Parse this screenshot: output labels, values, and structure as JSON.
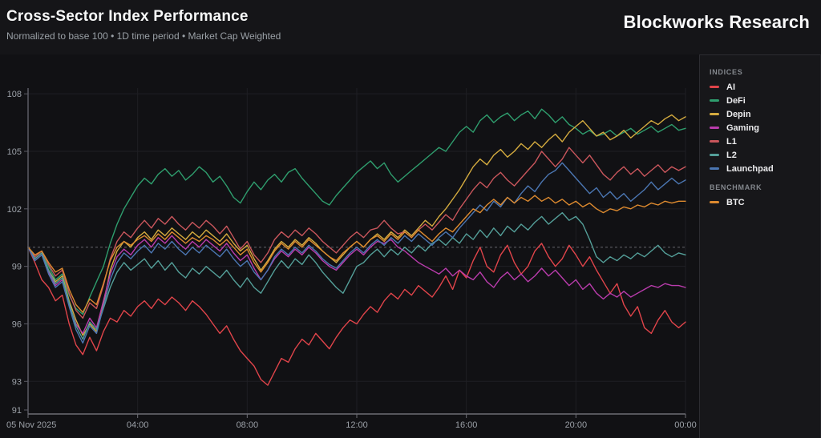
{
  "header": {
    "title": "Cross-Sector Index Performance",
    "subtitle": "Normalized to base 100 • 1D time period • Market Cap Weighted",
    "brand": "Blockworks Research"
  },
  "legend": {
    "sections": [
      {
        "label": "INDICES",
        "items": [
          "AI",
          "DeFi",
          "Depin",
          "Gaming",
          "L1",
          "L2",
          "Launchpad"
        ]
      },
      {
        "label": "BENCHMARK",
        "items": [
          "BTC"
        ]
      }
    ]
  },
  "chart_data": {
    "type": "line",
    "title": "Cross-Sector Index Performance",
    "xlabel": "",
    "ylabel": "",
    "x_axis": {
      "date_label": "05 Nov 2025",
      "tick_labels": [
        "04:00",
        "08:00",
        "12:00",
        "16:00",
        "20:00",
        "00:00"
      ],
      "tick_hours": [
        4,
        8,
        12,
        16,
        20,
        24
      ],
      "hours_span": 24
    },
    "y_axis": {
      "tick_values": [
        108,
        105,
        102,
        99,
        96,
        93,
        91
      ],
      "range": [
        91.3,
        108.3
      ]
    },
    "baseline": 100,
    "grid": true,
    "legend_position": "right-panel",
    "sample_interval_hours": 0.25,
    "series": [
      {
        "name": "AI",
        "color": "#e0444a",
        "values": [
          100.0,
          99.2,
          98.3,
          97.9,
          97.2,
          97.5,
          96.0,
          94.9,
          94.4,
          95.3,
          94.6,
          95.6,
          96.3,
          96.1,
          96.7,
          96.4,
          96.9,
          97.2,
          96.8,
          97.3,
          97.0,
          97.4,
          97.1,
          96.7,
          97.2,
          96.9,
          96.5,
          96.0,
          95.5,
          95.9,
          95.2,
          94.6,
          94.2,
          93.8,
          93.1,
          92.8,
          93.5,
          94.2,
          94.0,
          94.7,
          95.2,
          94.9,
          95.5,
          95.1,
          94.7,
          95.3,
          95.8,
          96.2,
          96.0,
          96.5,
          96.9,
          96.6,
          97.2,
          97.6,
          97.3,
          97.8,
          97.5,
          98.0,
          97.7,
          97.4,
          97.9,
          98.5,
          97.8,
          98.8,
          98.4,
          99.3,
          100.0,
          99.0,
          98.7,
          99.6,
          100.1,
          99.2,
          98.6,
          99.0,
          99.8,
          100.2,
          99.5,
          99.0,
          99.4,
          100.1,
          99.6,
          99.0,
          99.5,
          98.8,
          98.2,
          97.6,
          98.1,
          97.0,
          96.4,
          96.9,
          95.8,
          95.5,
          96.2,
          96.7,
          96.1,
          95.8,
          96.1
        ]
      },
      {
        "name": "DeFi",
        "color": "#2f9e6e",
        "values": [
          100.0,
          99.5,
          99.8,
          99.0,
          98.3,
          98.6,
          97.5,
          96.8,
          96.5,
          97.4,
          98.2,
          99.0,
          100.2,
          101.2,
          102.0,
          102.6,
          103.2,
          103.6,
          103.3,
          103.8,
          104.1,
          103.7,
          104.0,
          103.5,
          103.8,
          104.2,
          103.9,
          103.4,
          103.7,
          103.2,
          102.6,
          102.3,
          102.9,
          103.4,
          103.0,
          103.5,
          103.8,
          103.4,
          103.9,
          104.1,
          103.6,
          103.2,
          102.8,
          102.4,
          102.2,
          102.7,
          103.1,
          103.5,
          103.9,
          104.2,
          104.5,
          104.1,
          104.4,
          103.8,
          103.4,
          103.7,
          104.0,
          104.3,
          104.6,
          104.9,
          105.2,
          105.0,
          105.5,
          106.0,
          106.3,
          106.0,
          106.6,
          106.9,
          106.5,
          106.8,
          107.0,
          106.6,
          106.9,
          107.1,
          106.7,
          107.2,
          106.9,
          106.5,
          106.8,
          106.4,
          106.2,
          105.9,
          106.1,
          105.8,
          105.9,
          106.1,
          105.8,
          106.0,
          106.2,
          105.9,
          106.1,
          106.3,
          106.0,
          106.2,
          106.4,
          106.1,
          106.2
        ]
      },
      {
        "name": "Depin",
        "color": "#d4ab3f",
        "values": [
          100.0,
          99.4,
          99.7,
          98.8,
          98.2,
          98.5,
          97.2,
          96.2,
          95.4,
          96.0,
          95.6,
          97.0,
          98.8,
          99.8,
          100.3,
          100.0,
          100.5,
          100.8,
          100.4,
          100.9,
          100.6,
          101.0,
          100.7,
          100.4,
          100.8,
          100.5,
          100.9,
          100.6,
          100.3,
          100.7,
          100.2,
          99.8,
          100.1,
          99.4,
          98.8,
          99.3,
          99.9,
          100.3,
          100.0,
          100.4,
          100.1,
          100.5,
          100.2,
          99.8,
          99.5,
          99.2,
          99.6,
          100.0,
          100.3,
          100.0,
          100.4,
          100.7,
          100.4,
          100.8,
          100.5,
          100.9,
          100.6,
          101.0,
          101.4,
          101.1,
          101.6,
          102.0,
          102.5,
          103.0,
          103.6,
          104.2,
          104.6,
          104.3,
          104.8,
          105.1,
          104.7,
          105.0,
          105.4,
          105.1,
          105.5,
          105.2,
          105.6,
          105.9,
          105.5,
          106.0,
          106.3,
          106.6,
          106.2,
          105.8,
          106.0,
          105.6,
          105.8,
          106.1,
          105.7,
          106.0,
          106.3,
          106.6,
          106.4,
          106.7,
          106.9,
          106.6,
          106.8
        ]
      },
      {
        "name": "Gaming",
        "color": "#b93cac",
        "values": [
          100.0,
          99.3,
          99.6,
          98.7,
          98.0,
          98.3,
          97.0,
          96.0,
          95.5,
          96.3,
          95.8,
          97.2,
          98.6,
          99.5,
          99.9,
          99.6,
          100.1,
          100.4,
          100.0,
          100.5,
          100.2,
          100.6,
          100.2,
          99.9,
          100.3,
          100.0,
          100.4,
          100.1,
          99.8,
          100.2,
          99.7,
          99.3,
          99.6,
          98.9,
          98.3,
          98.8,
          99.4,
          99.8,
          99.5,
          99.9,
          99.6,
          100.0,
          99.7,
          99.3,
          99.0,
          98.8,
          99.2,
          99.6,
          99.9,
          99.6,
          100.0,
          100.3,
          100.2,
          100.4,
          100.0,
          99.8,
          99.5,
          99.2,
          99.0,
          98.8,
          98.6,
          98.9,
          98.5,
          98.8,
          98.5,
          98.3,
          98.7,
          98.2,
          97.9,
          98.4,
          98.7,
          98.3,
          98.6,
          98.2,
          98.5,
          98.9,
          98.5,
          98.8,
          98.4,
          98.0,
          98.3,
          97.8,
          98.1,
          97.6,
          97.3,
          97.6,
          97.4,
          97.7,
          97.4,
          97.6,
          97.8,
          98.0,
          97.9,
          98.1,
          98.0,
          98.0,
          97.9
        ]
      },
      {
        "name": "L1",
        "color": "#c9565c",
        "values": [
          100.0,
          99.5,
          99.8,
          99.1,
          98.5,
          98.8,
          97.6,
          96.7,
          96.3,
          97.1,
          96.8,
          98.0,
          99.4,
          100.3,
          100.8,
          100.5,
          101.0,
          101.4,
          101.0,
          101.5,
          101.2,
          101.6,
          101.2,
          100.9,
          101.3,
          101.0,
          101.4,
          101.1,
          100.7,
          101.1,
          100.5,
          99.9,
          100.3,
          99.6,
          99.2,
          99.7,
          100.4,
          100.8,
          100.5,
          100.9,
          100.6,
          101.0,
          100.7,
          100.3,
          100.0,
          99.7,
          100.1,
          100.5,
          100.8,
          100.5,
          100.9,
          101.0,
          101.4,
          101.0,
          100.7,
          100.8,
          100.5,
          100.9,
          101.2,
          100.9,
          101.3,
          101.7,
          101.4,
          102.0,
          102.5,
          103.0,
          103.4,
          103.1,
          103.6,
          103.9,
          103.5,
          103.2,
          103.6,
          104.0,
          104.4,
          105.0,
          104.6,
          104.2,
          104.6,
          105.2,
          104.8,
          104.4,
          104.8,
          104.3,
          103.8,
          103.5,
          103.9,
          104.2,
          103.8,
          104.1,
          103.7,
          104.0,
          104.3,
          103.9,
          104.2,
          104.0,
          104.2
        ]
      },
      {
        "name": "L2",
        "color": "#549f99",
        "values": [
          100.0,
          99.4,
          99.7,
          98.8,
          98.1,
          98.4,
          97.1,
          95.9,
          95.2,
          96.1,
          95.7,
          96.8,
          97.9,
          98.7,
          99.2,
          98.8,
          99.1,
          99.4,
          98.9,
          99.3,
          98.8,
          99.2,
          98.7,
          98.4,
          98.9,
          98.6,
          99.0,
          98.7,
          98.4,
          98.8,
          98.3,
          97.9,
          98.4,
          97.9,
          97.6,
          98.2,
          98.8,
          99.3,
          98.9,
          99.4,
          99.1,
          99.6,
          99.2,
          98.7,
          98.3,
          97.9,
          97.6,
          98.3,
          99.0,
          99.2,
          99.6,
          99.9,
          99.5,
          99.9,
          99.6,
          100.0,
          99.7,
          100.1,
          99.8,
          100.2,
          100.4,
          100.1,
          100.5,
          100.2,
          100.7,
          100.4,
          100.9,
          100.5,
          101.0,
          100.6,
          101.1,
          100.8,
          101.2,
          100.9,
          101.3,
          101.6,
          101.2,
          101.5,
          101.8,
          101.4,
          101.6,
          101.2,
          100.4,
          99.5,
          99.2,
          99.5,
          99.3,
          99.6,
          99.4,
          99.7,
          99.5,
          99.8,
          100.1,
          99.7,
          99.5,
          99.7,
          99.6
        ]
      },
      {
        "name": "Launchpad",
        "color": "#4b76b2",
        "values": [
          100.0,
          99.3,
          99.6,
          98.6,
          97.9,
          98.2,
          96.9,
          95.7,
          95.0,
          95.9,
          95.5,
          96.9,
          98.3,
          99.2,
          99.7,
          99.4,
          99.8,
          100.1,
          99.7,
          100.2,
          99.9,
          100.3,
          99.9,
          99.6,
          100.0,
          99.7,
          100.1,
          99.8,
          99.5,
          99.9,
          99.4,
          99.0,
          99.3,
          98.7,
          98.3,
          98.8,
          99.5,
          99.9,
          99.6,
          100.0,
          99.7,
          100.1,
          99.8,
          99.4,
          99.1,
          98.9,
          99.3,
          99.7,
          100.0,
          99.7,
          100.1,
          100.4,
          100.1,
          100.5,
          100.2,
          100.6,
          100.3,
          100.7,
          100.4,
          100.1,
          100.5,
          100.8,
          100.5,
          101.0,
          101.4,
          101.8,
          102.2,
          101.9,
          102.4,
          102.1,
          102.6,
          102.3,
          102.8,
          103.2,
          102.9,
          103.4,
          103.8,
          104.0,
          104.4,
          104.0,
          103.6,
          103.2,
          102.8,
          103.1,
          102.6,
          102.9,
          102.5,
          102.8,
          102.4,
          102.7,
          103.0,
          103.4,
          103.0,
          103.3,
          103.6,
          103.3,
          103.5
        ]
      },
      {
        "name": "BTC",
        "color": "#dd8a2f",
        "values": [
          100.0,
          99.6,
          99.8,
          99.2,
          98.7,
          98.9,
          97.8,
          97.0,
          96.6,
          97.3,
          97.0,
          98.1,
          99.3,
          100.0,
          100.3,
          100.1,
          100.4,
          100.6,
          100.3,
          100.7,
          100.4,
          100.8,
          100.5,
          100.2,
          100.5,
          100.3,
          100.6,
          100.4,
          100.1,
          100.4,
          100.0,
          99.6,
          99.9,
          99.2,
          98.7,
          99.2,
          99.8,
          100.2,
          99.9,
          100.3,
          100.0,
          100.4,
          100.1,
          99.8,
          99.5,
          99.3,
          99.7,
          100.0,
          100.3,
          100.0,
          100.4,
          100.6,
          100.3,
          100.7,
          100.4,
          100.8,
          100.5,
          100.9,
          100.6,
          100.3,
          100.7,
          101.0,
          100.8,
          101.2,
          101.6,
          102.0,
          101.8,
          102.2,
          102.5,
          102.2,
          102.6,
          102.3,
          102.6,
          102.4,
          102.7,
          102.4,
          102.6,
          102.3,
          102.5,
          102.2,
          102.4,
          102.1,
          102.3,
          102.0,
          101.8,
          102.0,
          101.9,
          102.1,
          102.0,
          102.2,
          102.1,
          102.3,
          102.2,
          102.4,
          102.3,
          102.4,
          102.4
        ]
      }
    ]
  }
}
